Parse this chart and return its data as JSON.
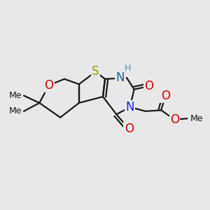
{
  "bg_color": "#e8e8e8",
  "bond_color": "#1a1a1a",
  "bond_width": 1.6,
  "figsize": [
    3.0,
    3.0
  ],
  "dpi": 100,
  "atoms": {
    "S": {
      "label": "S",
      "color": "#999900"
    },
    "O_pyr": {
      "label": "O",
      "color": "#cc0000"
    },
    "NH": {
      "label": "H",
      "color": "#4499aa"
    },
    "N1": {
      "label": "N",
      "color": "#1a1aff"
    },
    "N2": {
      "label": "N",
      "color": "#1a1aff"
    },
    "O1": {
      "label": "O",
      "color": "#cc0000"
    },
    "O2": {
      "label": "O",
      "color": "#cc0000"
    },
    "O3": {
      "label": "O",
      "color": "#cc0000"
    },
    "O4": {
      "label": "O",
      "color": "#cc0000"
    }
  }
}
